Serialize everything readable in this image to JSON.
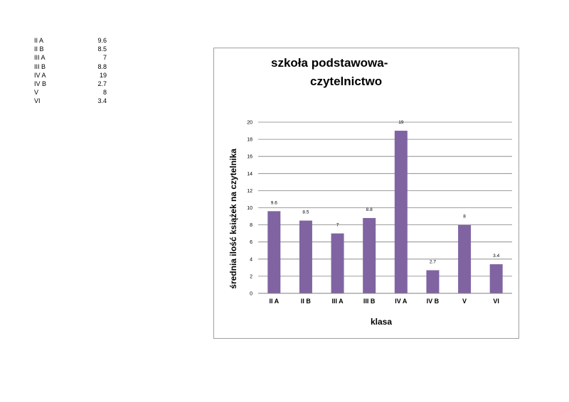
{
  "table": {
    "rows": [
      {
        "label": "II A",
        "value": "9.6"
      },
      {
        "label": "II B",
        "value": "8.5"
      },
      {
        "label": "III A",
        "value": "7"
      },
      {
        "label": "III B",
        "value": "8.8"
      },
      {
        "label": "IV A",
        "value": "19"
      },
      {
        "label": "IV B",
        "value": "2.7"
      },
      {
        "label": "V",
        "value": "8"
      },
      {
        "label": "VI",
        "value": "3.4"
      }
    ]
  },
  "chart_data": {
    "type": "bar",
    "title_lines": [
      "szkoła podstawowa-",
      "czytelnictwo"
    ],
    "xlabel": "klasa",
    "ylabel": "średnia ilość książek na czytelnika",
    "categories": [
      "II A",
      "II B",
      "III A",
      "III B",
      "IV A",
      "IV B",
      "V",
      "VI"
    ],
    "values": [
      9.6,
      8.5,
      7,
      8.8,
      19,
      2.7,
      8,
      3.4
    ],
    "data_labels": [
      "9.6",
      "8.5",
      "7",
      "8.8",
      "19",
      "2.7",
      "8",
      "3.4"
    ],
    "ylim": [
      0,
      20
    ],
    "yticks": [
      0,
      2,
      4,
      6,
      8,
      10,
      12,
      14,
      16,
      18,
      20
    ],
    "grid": true,
    "bar_color": "#8064a2"
  }
}
